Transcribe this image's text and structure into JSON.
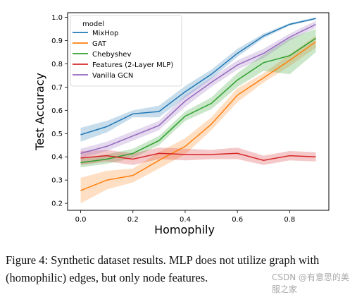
{
  "chart_data": {
    "type": "line",
    "xlabel": "Homophily",
    "ylabel": "Test Accuracy",
    "xlim": [
      -0.05,
      0.95
    ],
    "ylim": [
      0.17,
      1.02
    ],
    "xticks": [
      0.0,
      0.2,
      0.4,
      0.6,
      0.8
    ],
    "xtick_labels": [
      "0.0",
      "0.2",
      "0.4",
      "0.6",
      "0.8"
    ],
    "yticks": [
      0.2,
      0.3,
      0.4,
      0.5,
      0.6,
      0.7,
      0.8,
      0.9,
      1.0
    ],
    "ytick_labels": [
      "0.2",
      "0.3",
      "0.4",
      "0.5",
      "0.6",
      "0.7",
      "0.8",
      "0.9",
      "1.0"
    ],
    "legend_title": "model",
    "legend_position": "top-left",
    "grid": false,
    "x": [
      0.0,
      0.1,
      0.2,
      0.3,
      0.4,
      0.5,
      0.6,
      0.7,
      0.8,
      0.9
    ],
    "series": [
      {
        "name": "MixHop",
        "color": "#1f77b4",
        "values": [
          0.495,
          0.53,
          0.585,
          0.595,
          0.68,
          0.755,
          0.845,
          0.92,
          0.97,
          0.995
        ],
        "lower": [
          0.465,
          0.505,
          0.57,
          0.57,
          0.655,
          0.735,
          0.83,
          0.91,
          0.965,
          0.99
        ],
        "upper": [
          0.525,
          0.555,
          0.6,
          0.62,
          0.705,
          0.775,
          0.865,
          0.93,
          0.975,
          1.0
        ]
      },
      {
        "name": "GAT",
        "color": "#ff7f0e",
        "values": [
          0.255,
          0.3,
          0.32,
          0.385,
          0.445,
          0.54,
          0.665,
          0.74,
          0.815,
          0.895
        ],
        "lower": [
          0.2,
          0.26,
          0.29,
          0.35,
          0.41,
          0.515,
          0.635,
          0.72,
          0.79,
          0.87
        ],
        "upper": [
          0.31,
          0.34,
          0.35,
          0.42,
          0.48,
          0.57,
          0.695,
          0.76,
          0.84,
          0.92
        ]
      },
      {
        "name": "Chebyshev",
        "color": "#2ca02c",
        "values": [
          0.375,
          0.39,
          0.415,
          0.47,
          0.575,
          0.63,
          0.73,
          0.805,
          0.835,
          0.91
        ],
        "lower": [
          0.355,
          0.37,
          0.395,
          0.45,
          0.555,
          0.605,
          0.7,
          0.77,
          0.755,
          0.85
        ],
        "upper": [
          0.395,
          0.41,
          0.435,
          0.49,
          0.595,
          0.655,
          0.76,
          0.84,
          0.91,
          0.95
        ]
      },
      {
        "name": "Features (2-Layer MLP)",
        "color": "#d62728",
        "values": [
          0.395,
          0.405,
          0.39,
          0.415,
          0.41,
          0.41,
          0.415,
          0.385,
          0.405,
          0.4
        ],
        "lower": [
          0.365,
          0.38,
          0.365,
          0.39,
          0.385,
          0.39,
          0.39,
          0.365,
          0.385,
          0.38
        ],
        "upper": [
          0.425,
          0.43,
          0.415,
          0.44,
          0.435,
          0.43,
          0.44,
          0.405,
          0.425,
          0.42
        ]
      },
      {
        "name": "Vanilla GCN",
        "color": "#9467bd",
        "values": [
          0.415,
          0.445,
          0.49,
          0.535,
          0.64,
          0.72,
          0.795,
          0.845,
          0.915,
          0.97
        ],
        "lower": [
          0.395,
          0.425,
          0.47,
          0.515,
          0.615,
          0.7,
          0.775,
          0.825,
          0.9,
          0.955
        ],
        "upper": [
          0.435,
          0.465,
          0.51,
          0.555,
          0.665,
          0.74,
          0.815,
          0.865,
          0.93,
          0.985
        ]
      }
    ]
  },
  "caption": "Figure 4: Synthetic dataset results. MLP does not utilize graph with (homophilic) edges, but only node features.",
  "watermark": "CSDN @有意思的美服之家"
}
